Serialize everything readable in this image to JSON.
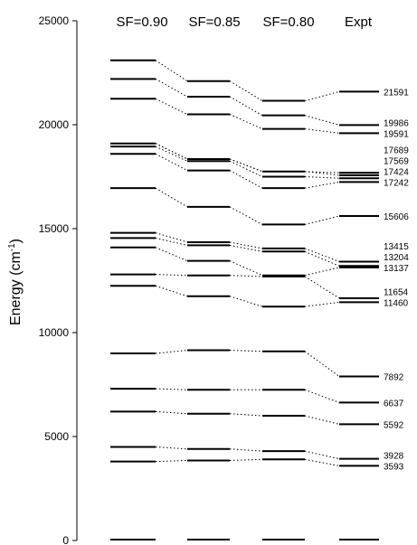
{
  "chart_data": {
    "type": "energy-level-diagram",
    "ylabel": "Energy (cm",
    "ylabel_superscript": "-1",
    "ylabel_suffix": ")",
    "ylim": [
      0,
      25000
    ],
    "yticks": [
      0,
      5000,
      10000,
      15000,
      20000,
      25000
    ],
    "columns": [
      "SF=0.90",
      "SF=0.85",
      "SF=0.80",
      "Expt"
    ],
    "series": [
      {
        "name": "SF=0.90",
        "values": [
          0,
          3800,
          4500,
          6200,
          7300,
          9000,
          12250,
          12800,
          14100,
          14550,
          14800,
          16950,
          18600,
          18950,
          19100,
          21250,
          22200,
          23100
        ]
      },
      {
        "name": "SF=0.85",
        "values": [
          0,
          3850,
          4400,
          6100,
          7250,
          9150,
          11750,
          12750,
          13450,
          14200,
          14350,
          16050,
          17800,
          18250,
          18350,
          20500,
          21350,
          22100
        ]
      },
      {
        "name": "SF=0.80",
        "values": [
          0,
          3900,
          4300,
          6000,
          7250,
          9100,
          11250,
          12700,
          12750,
          13900,
          14050,
          15200,
          16950,
          17500,
          17750,
          19800,
          20450,
          21150
        ]
      },
      {
        "name": "Expt",
        "values": [
          0,
          3593,
          3928,
          5592,
          6637,
          7892,
          11460,
          11654,
          13137,
          13204,
          13415,
          15606,
          17242,
          17424,
          17569,
          17689,
          19591,
          19986,
          21591
        ],
        "labels": [
          "",
          "3593",
          "3928",
          "5592",
          "6637",
          "7892",
          "11460",
          "11654",
          "13137",
          "13204",
          "13415",
          "15606",
          "17242",
          "17424",
          "17569",
          "17689",
          "19591",
          "19986",
          "21591"
        ]
      }
    ],
    "connections": [
      [
        [
          0,
          0
        ],
        [
          1,
          0
        ],
        [
          2,
          0
        ],
        [
          3,
          0
        ]
      ],
      [
        [
          0,
          1
        ],
        [
          1,
          1
        ],
        [
          2,
          1
        ],
        [
          3,
          1
        ]
      ],
      [
        [
          0,
          2
        ],
        [
          1,
          2
        ],
        [
          2,
          2
        ],
        [
          3,
          2
        ]
      ],
      [
        [
          0,
          3
        ],
        [
          1,
          3
        ],
        [
          2,
          3
        ],
        [
          3,
          3
        ]
      ],
      [
        [
          0,
          4
        ],
        [
          1,
          4
        ],
        [
          2,
          4
        ],
        [
          3,
          4
        ]
      ],
      [
        [
          0,
          5
        ],
        [
          1,
          5
        ],
        [
          2,
          5
        ],
        [
          3,
          5
        ]
      ],
      [
        [
          0,
          6
        ],
        [
          1,
          6
        ],
        [
          2,
          6
        ],
        [
          3,
          6
        ]
      ],
      [
        [
          0,
          7
        ],
        [
          1,
          7
        ],
        [
          2,
          7
        ],
        [
          3,
          7
        ]
      ],
      [
        [
          0,
          8
        ],
        [
          1,
          8
        ],
        [
          2,
          8
        ],
        [
          3,
          8
        ]
      ],
      [
        [
          0,
          9
        ],
        [
          1,
          9
        ],
        [
          2,
          9
        ],
        [
          3,
          9
        ]
      ],
      [
        [
          0,
          10
        ],
        [
          1,
          10
        ],
        [
          2,
          10
        ],
        [
          3,
          10
        ]
      ],
      [
        [
          0,
          11
        ],
        [
          1,
          11
        ],
        [
          2,
          11
        ],
        [
          3,
          11
        ]
      ],
      [
        [
          0,
          12
        ],
        [
          1,
          12
        ],
        [
          2,
          12
        ],
        [
          3,
          12
        ]
      ],
      [
        [
          0,
          13
        ],
        [
          1,
          13
        ],
        [
          2,
          13
        ],
        [
          3,
          13
        ]
      ],
      [
        [
          0,
          14
        ],
        [
          1,
          14
        ],
        [
          2,
          14
        ],
        [
          3,
          14
        ]
      ],
      [
        [
          0,
          14
        ],
        [
          1,
          14
        ],
        [
          2,
          14
        ],
        [
          3,
          15
        ]
      ],
      [
        [
          0,
          15
        ],
        [
          1,
          15
        ],
        [
          2,
          15
        ],
        [
          3,
          16
        ]
      ],
      [
        [
          0,
          16
        ],
        [
          1,
          16
        ],
        [
          2,
          16
        ],
        [
          3,
          17
        ]
      ],
      [
        [
          0,
          17
        ],
        [
          1,
          17
        ],
        [
          2,
          17
        ],
        [
          3,
          18
        ]
      ]
    ]
  }
}
